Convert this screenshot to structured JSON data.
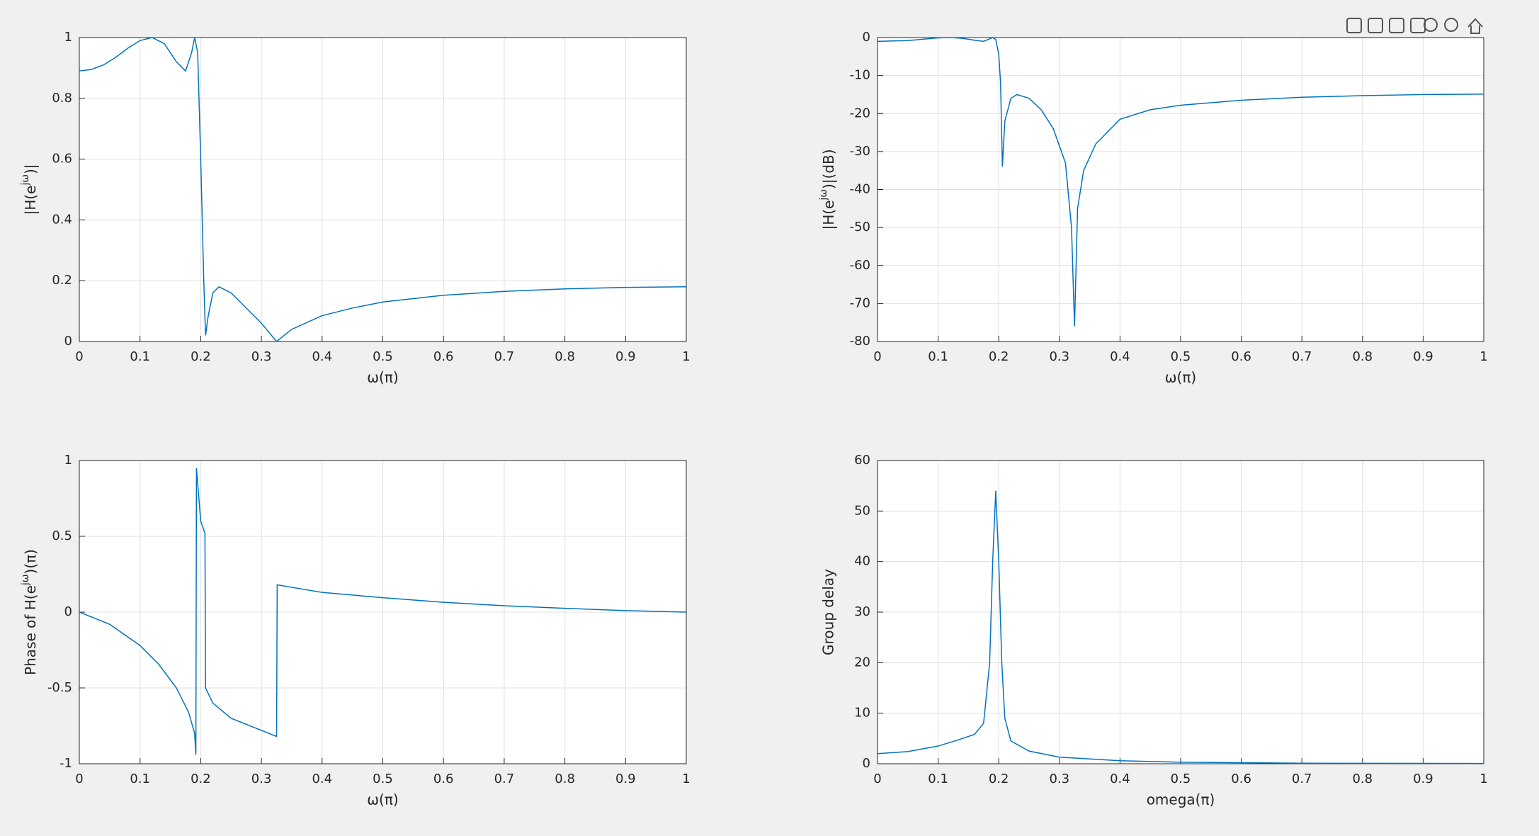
{
  "chart_data": [
    {
      "type": "line",
      "ylabel": [
        "|H(e",
        "jω",
        ")|"
      ],
      "xlabel": "ω(π)",
      "xlim": [
        0,
        1
      ],
      "ylim": [
        0,
        1
      ],
      "xticks": [
        0,
        0.1,
        0.2,
        0.3,
        0.4,
        0.5,
        0.6,
        0.7,
        0.8,
        0.9,
        1
      ],
      "yticks": [
        0,
        0.2,
        0.4,
        0.6,
        0.8,
        1
      ],
      "grid": true,
      "x": [
        0,
        0.02,
        0.04,
        0.06,
        0.08,
        0.1,
        0.12,
        0.14,
        0.16,
        0.175,
        0.185,
        0.19,
        0.195,
        0.2,
        0.205,
        0.208,
        0.212,
        0.22,
        0.23,
        0.25,
        0.27,
        0.3,
        0.325,
        0.35,
        0.4,
        0.45,
        0.5,
        0.6,
        0.7,
        0.8,
        0.9,
        1
      ],
      "series": [
        {
          "color": "#0072bd",
          "values": [
            0.89,
            0.895,
            0.91,
            0.935,
            0.965,
            0.99,
            1.0,
            0.98,
            0.92,
            0.89,
            0.95,
            1.0,
            0.95,
            0.6,
            0.2,
            0.02,
            0.08,
            0.16,
            0.18,
            0.16,
            0.12,
            0.06,
            0.0,
            0.04,
            0.085,
            0.11,
            0.13,
            0.152,
            0.165,
            0.173,
            0.178,
            0.18
          ]
        }
      ]
    },
    {
      "type": "line",
      "ylabel": [
        "|H(e",
        "jω",
        ")|(dB)"
      ],
      "xlabel": "ω(π)",
      "xlim": [
        0,
        1
      ],
      "ylim": [
        -80,
        0
      ],
      "xticks": [
        0,
        0.1,
        0.2,
        0.3,
        0.4,
        0.5,
        0.6,
        0.7,
        0.8,
        0.9,
        1
      ],
      "yticks": [
        -80,
        -70,
        -60,
        -50,
        -40,
        -30,
        -20,
        -10,
        0
      ],
      "grid": true,
      "x": [
        0,
        0.05,
        0.1,
        0.12,
        0.14,
        0.16,
        0.175,
        0.19,
        0.195,
        0.2,
        0.203,
        0.206,
        0.21,
        0.22,
        0.23,
        0.25,
        0.27,
        0.29,
        0.31,
        0.32,
        0.325,
        0.33,
        0.34,
        0.36,
        0.4,
        0.45,
        0.5,
        0.6,
        0.7,
        0.8,
        0.9,
        1
      ],
      "series": [
        {
          "color": "#0072bd",
          "values": [
            -1,
            -0.8,
            -0.1,
            0,
            -0.2,
            -0.7,
            -1,
            0,
            -0.5,
            -4.4,
            -12,
            -34,
            -22,
            -16,
            -15,
            -16,
            -19,
            -24,
            -33,
            -50,
            -76,
            -45,
            -35,
            -28,
            -21.5,
            -19,
            -17.8,
            -16.5,
            -15.7,
            -15.3,
            -15,
            -14.9
          ]
        }
      ]
    },
    {
      "type": "line",
      "ylabel": [
        "Phase of H(e",
        "jω",
        ")(π)"
      ],
      "xlabel": "ω(π)",
      "xlim": [
        0,
        1
      ],
      "ylim": [
        -1,
        1
      ],
      "xticks": [
        0,
        0.1,
        0.2,
        0.3,
        0.4,
        0.5,
        0.6,
        0.7,
        0.8,
        0.9,
        1
      ],
      "yticks": [
        -1,
        -0.5,
        0,
        0.5,
        1
      ],
      "grid": true,
      "x": [
        0,
        0.05,
        0.1,
        0.13,
        0.16,
        0.18,
        0.19,
        0.192,
        0.193,
        0.2,
        0.207,
        0.208,
        0.22,
        0.25,
        0.3,
        0.325,
        0.326,
        0.4,
        0.5,
        0.6,
        0.7,
        0.8,
        0.9,
        1
      ],
      "series": [
        {
          "color": "#0072bd",
          "values": [
            0,
            -0.08,
            -0.22,
            -0.34,
            -0.5,
            -0.66,
            -0.8,
            -0.94,
            0.95,
            0.6,
            0.52,
            -0.5,
            -0.6,
            -0.7,
            -0.78,
            -0.82,
            0.18,
            0.13,
            0.095,
            0.065,
            0.042,
            0.025,
            0.01,
            0
          ]
        }
      ]
    },
    {
      "type": "line",
      "ylabel": "Group delay",
      "xlabel": "omega(π)",
      "xlim": [
        0,
        1
      ],
      "ylim": [
        0,
        60
      ],
      "xticks": [
        0,
        0.1,
        0.2,
        0.3,
        0.4,
        0.5,
        0.6,
        0.7,
        0.8,
        0.9,
        1
      ],
      "yticks": [
        0,
        10,
        20,
        30,
        40,
        50,
        60
      ],
      "grid": true,
      "x": [
        0,
        0.05,
        0.1,
        0.13,
        0.16,
        0.175,
        0.185,
        0.19,
        0.195,
        0.2,
        0.205,
        0.21,
        0.22,
        0.25,
        0.3,
        0.4,
        0.5,
        0.7,
        1
      ],
      "series": [
        {
          "color": "#0072bd",
          "values": [
            2,
            2.4,
            3.5,
            4.6,
            5.8,
            8,
            20,
            40,
            54,
            40,
            20,
            9,
            4.5,
            2.5,
            1.3,
            0.6,
            0.3,
            0.1,
            0.05
          ]
        }
      ]
    }
  ]
}
